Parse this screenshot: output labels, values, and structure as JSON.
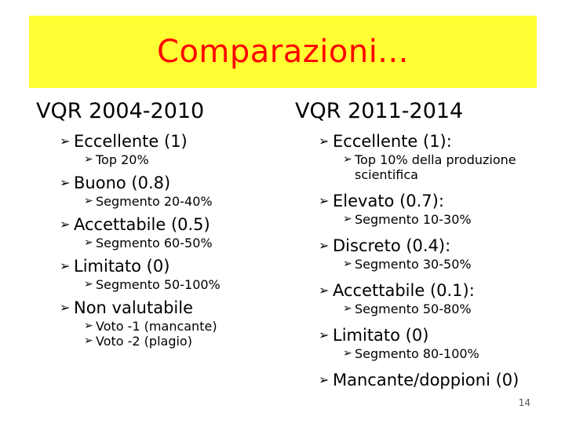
{
  "slide": {
    "title": "Comparazioni...",
    "page_number": "14"
  },
  "left": {
    "heading": "VQR 2004-2010",
    "items": [
      {
        "label": "Eccellente (1)",
        "sub": [
          "Top 20%"
        ]
      },
      {
        "label": "Buono (0.8)",
        "sub": [
          "Segmento 20-40%"
        ]
      },
      {
        "label": "Accettabile (0.5)",
        "sub": [
          "Segmento 60-50%"
        ]
      },
      {
        "label": "Limitato (0)",
        "sub": [
          "Segmento 50-100%"
        ]
      },
      {
        "label": "Non valutabile",
        "sub": [
          "Voto -1 (mancante)",
          "Voto -2 (plagio)"
        ]
      }
    ]
  },
  "right": {
    "heading": "VQR 2011-2014",
    "items": [
      {
        "label": "Eccellente (1):",
        "sub": [
          "Top 10% della produzione scientifica"
        ]
      },
      {
        "label": "Elevato (0.7):",
        "sub": [
          "Segmento 10-30%"
        ]
      },
      {
        "label": "Discreto (0.4):",
        "sub": [
          "Segmento 30-50%"
        ]
      },
      {
        "label": "Accettabile (0.1):",
        "sub": [
          "Segmento 50-80%"
        ]
      },
      {
        "label": "Limitato (0)",
        "sub": [
          "Segmento 80-100%"
        ]
      },
      {
        "label": "Mancante/doppioni (0)",
        "sub": []
      }
    ]
  }
}
